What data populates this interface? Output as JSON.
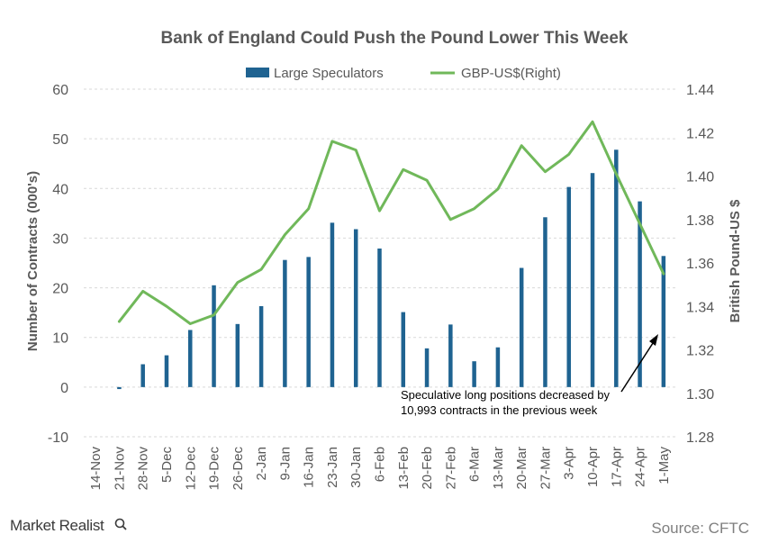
{
  "brand": "Market Realist",
  "source": "Source: CFTC",
  "annotation": {
    "line1": "Speculative long positions decreased by",
    "line2": "10,993  contracts in the previous week"
  },
  "chart_data": {
    "type": "bar+line",
    "title": "Bank of England  Could  Push the Pound Lower This Week",
    "categories": [
      "14-Nov",
      "21-Nov",
      "28-Nov",
      "5-Dec",
      "12-Dec",
      "19-Dec",
      "26-Dec",
      "2-Jan",
      "9-Jan",
      "16-Jan",
      "23-Jan",
      "30-Jan",
      "6-Feb",
      "13-Feb",
      "20-Feb",
      "27-Feb",
      "6-Mar",
      "13-Mar",
      "20-Mar",
      "27-Mar",
      "3-Apr",
      "10-Apr",
      "17-Apr",
      "24-Apr",
      "1-May"
    ],
    "ylabel_left": "Number of Contracts (000's)",
    "ylabel_right": "British Pound-US $",
    "y_left": {
      "min": -10,
      "max": 60,
      "ticks": [
        60,
        50,
        40,
        30,
        20,
        10,
        0,
        -10
      ]
    },
    "y_right": {
      "min": 1.28,
      "max": 1.44,
      "ticks": [
        "1.44",
        "1.42",
        "1.40",
        "1.38",
        "1.36",
        "1.34",
        "1.32",
        "1.30",
        "1.28"
      ]
    },
    "grid": "horizontal dashed",
    "legend_position": "top",
    "series": [
      {
        "name": "Large Speculators",
        "type": "bar",
        "axis": "left",
        "color": "#1f6391",
        "values": [
          null,
          -0.4,
          4.6,
          6.4,
          11.5,
          20.5,
          12.7,
          16.3,
          25.6,
          26.2,
          33.1,
          31.8,
          27.9,
          15.1,
          7.8,
          12.6,
          5.2,
          8.0,
          24.0,
          34.2,
          40.3,
          43.1,
          47.8,
          37.4,
          26.4
        ]
      },
      {
        "name": "GBP-US$(Right)",
        "type": "line",
        "axis": "right",
        "color": "#70b85a",
        "values": [
          null,
          1.333,
          1.347,
          1.34,
          1.332,
          1.336,
          1.351,
          1.357,
          1.373,
          1.385,
          1.416,
          1.412,
          1.384,
          1.403,
          1.398,
          1.38,
          1.385,
          1.394,
          1.414,
          1.402,
          1.41,
          1.425,
          1.401,
          1.378,
          1.355
        ]
      }
    ]
  }
}
